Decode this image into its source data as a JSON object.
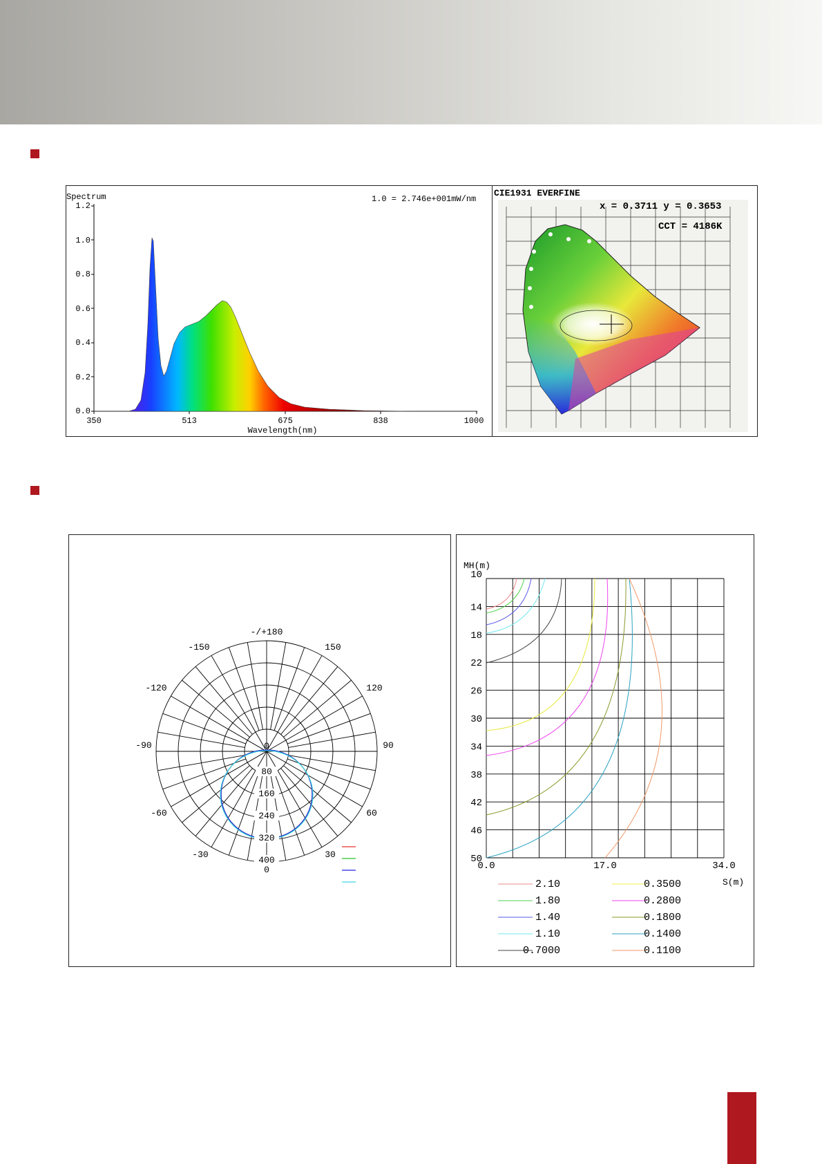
{
  "spectrum": {
    "title": "Spectrum",
    "scale_note": "1.0 = 2.746e+001mW/nm",
    "xlabel": "Wavelength(nm)",
    "x_ticks": [
      "350",
      "513",
      "675",
      "838",
      "1000"
    ],
    "y_ticks": [
      "0.0",
      "0.2",
      "0.4",
      "0.6",
      "0.8",
      "1.0",
      "1.2"
    ]
  },
  "cie": {
    "title": "CIE1931   EVERFINE",
    "coords": "x = 0.3711 y = 0.3653",
    "cct": "CCT = 4186K"
  },
  "polar": {
    "angles": {
      "top": "-/+180",
      "n150": "-150",
      "p150": "150",
      "n120": "-120",
      "p120": "120",
      "n90": "-90",
      "p90": "90",
      "n60": "-60",
      "p60": "60",
      "n30": "-30",
      "p30": "30",
      "bottom": "0"
    },
    "rings": [
      "0",
      "80",
      "160",
      "240",
      "320",
      "400"
    ],
    "legend_colors": [
      "#e8342c",
      "#27c227",
      "#2323e0",
      "#3fd7e0"
    ]
  },
  "isolux": {
    "y_label": "MH(m)",
    "x_label": "S(m)",
    "y_ticks": [
      "10",
      "14",
      "18",
      "22",
      "26",
      "30",
      "34",
      "38",
      "42",
      "46",
      "50"
    ],
    "x_ticks": [
      "0.0",
      "17.0",
      "34.0"
    ],
    "legend": [
      {
        "value": "2.10",
        "color": "#f08a8a"
      },
      {
        "value": "1.80",
        "color": "#4fd24f"
      },
      {
        "value": "1.40",
        "color": "#5a5ae8"
      },
      {
        "value": "1.10",
        "color": "#70e8ee"
      },
      {
        "value": "0.7000",
        "color": "#444444"
      },
      {
        "value": "0.3500",
        "color": "#f0f04a"
      },
      {
        "value": "0.2800",
        "color": "#ee44ee"
      },
      {
        "value": "0.1800",
        "color": "#8a9a2a"
      },
      {
        "value": "0.1400",
        "color": "#2aa2c2"
      },
      {
        "value": "0.1100",
        "color": "#f09a6a"
      }
    ]
  }
}
